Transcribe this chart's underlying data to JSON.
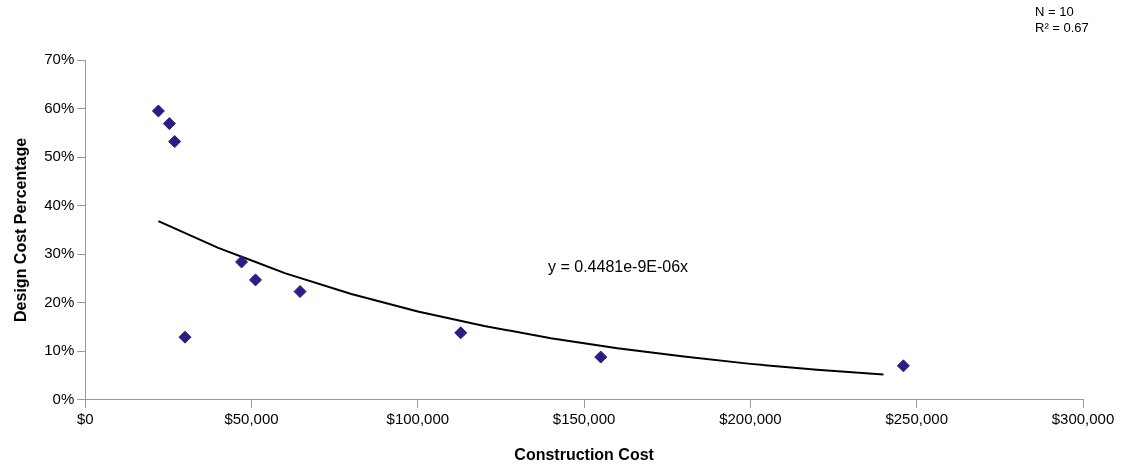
{
  "chart_data": {
    "type": "scatter",
    "xlabel": "Construction Cost",
    "ylabel": "Design Cost Percentage",
    "series": [
      {
        "color": "#2b1d86",
        "x": [
          22000,
          25300,
          26900,
          30000,
          47000,
          51200,
          64600,
          112900,
          155000,
          246000
        ],
        "values": [
          59.5,
          56.9,
          53.2,
          12.9,
          28.4,
          24.7,
          22.3,
          13.8,
          8.8,
          7.0
        ]
      },
      {
        "type": "line",
        "color": "#000000",
        "marker": "none",
        "x": [
          22000,
          40000,
          60000,
          80000,
          100000,
          120000,
          140000,
          160000,
          180000,
          200000,
          220000,
          240000
        ],
        "values": [
          36.8,
          31.3,
          26.1,
          21.8,
          18.2,
          15.2,
          12.7,
          10.6,
          8.9,
          7.4,
          6.2,
          5.2
        ]
      }
    ],
    "marker": "diamond",
    "xlim": [
      0,
      300000
    ],
    "ylim": [
      0,
      70
    ],
    "xticks": [
      {
        "value": 0,
        "label": "$0"
      },
      {
        "value": 50000,
        "label": "$50,000"
      },
      {
        "value": 100000,
        "label": "$100,000"
      },
      {
        "value": 150000,
        "label": "$150,000"
      },
      {
        "value": 200000,
        "label": "$200,000"
      },
      {
        "value": 250000,
        "label": "$250,000"
      },
      {
        "value": 300000,
        "label": "$300,000"
      }
    ],
    "yticks": [
      {
        "value": 0,
        "label": "0%"
      },
      {
        "value": 10,
        "label": "10%"
      },
      {
        "value": 20,
        "label": "20%"
      },
      {
        "value": 30,
        "label": "30%"
      },
      {
        "value": 40,
        "label": "40%"
      },
      {
        "value": 50,
        "label": "50%"
      },
      {
        "value": 60,
        "label": "60%"
      },
      {
        "value": 70,
        "label": "70%"
      }
    ],
    "annotations": [
      "N = 10",
      "R² = 0.67",
      "y = 0.4481e-9E-06x"
    ],
    "grid": false,
    "legend": false
  }
}
